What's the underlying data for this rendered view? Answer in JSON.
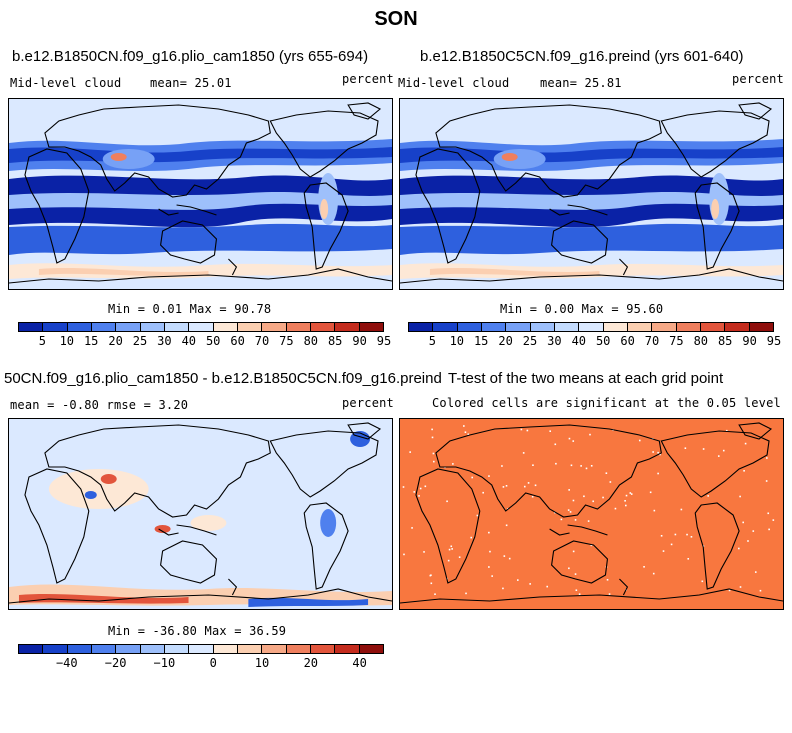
{
  "page_title": "SON",
  "palette": {
    "abs_colors": [
      "#0a22a6",
      "#1741c9",
      "#2e60de",
      "#4f80ee",
      "#77a1f6",
      "#9ec0fb",
      "#c4dcfe",
      "#dbe9ff",
      "#fde8d6",
      "#fbcfb1",
      "#f6a987",
      "#ef7f5e",
      "#e2553c",
      "#c42c1e",
      "#8f0f0c"
    ],
    "diff_colors": [
      "#0a22a6",
      "#1741c9",
      "#2e60de",
      "#4f80ee",
      "#77a1f6",
      "#9ec0fb",
      "#c4dcfe",
      "#dbe9ff",
      "#fde8d6",
      "#fbcfb1",
      "#f6a987",
      "#ef7f5e",
      "#e2553c",
      "#c42c1e",
      "#8f0f0c"
    ],
    "ttest_fill": "#f8773f"
  },
  "panel1": {
    "title": "b.e12.B1850CN.f09_g16.plio_cam1850 (yrs 655-694)",
    "left": "Mid-level cloud",
    "center": "mean=  25.01",
    "right": "percent",
    "minmax": "Min =   0.01 Max =  90.78"
  },
  "panel2": {
    "title": "b.e12.B1850C5CN.f09_g16.preind (yrs 601-640)",
    "left": "Mid-level cloud",
    "center": "mean=  25.81",
    "right": "percent",
    "minmax": "Min =   0.00 Max =  95.60"
  },
  "panel3": {
    "title": "50CN.f09_g16.plio_cam1850 - b.e12.B1850C5CN.f09_g16.preind",
    "left": "mean =  -0.80    rmse =   3.20",
    "right": "percent",
    "minmax": "Min = -36.80 Max =  36.59"
  },
  "panel4": {
    "title": "T-test of the two means at each grid point",
    "subtitle": "Colored cells are significant at the 0.05 level"
  },
  "abs_ticks": [
    "5",
    "10",
    "15",
    "20",
    "25",
    "30",
    "40",
    "50",
    "60",
    "70",
    "75",
    "80",
    "85",
    "90",
    "95"
  ],
  "diff_ticks": [
    "−40",
    "−20",
    "−10",
    "0",
    "10",
    "20",
    "40"
  ]
}
